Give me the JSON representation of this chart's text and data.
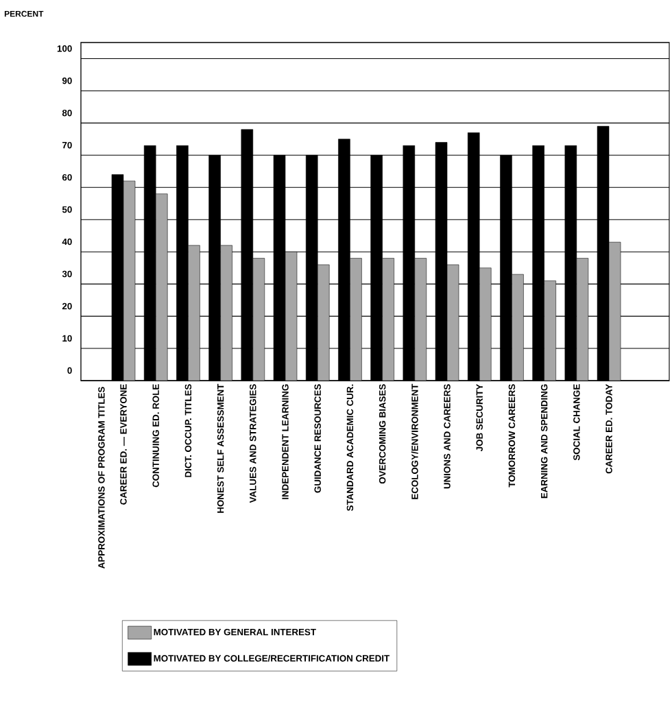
{
  "chart_data": {
    "type": "bar",
    "ylabel": "PERCENT",
    "annotations": [
      "APPROXIMATIONS OF PROGRAM TITLES"
    ],
    "categories": [
      "CAREER ED. — EVERYONE",
      "CONTINUING ED. ROLE",
      "DICT. OCCUP. TITLES",
      "HONEST SELF ASSESSMENT",
      "VALUES AND STRATEGIES",
      "INDEPENDENT LEARNING",
      "GUIDANCE RESOURCES",
      "STANDARD ACADEMIC CUR.",
      "OVERCOMING BIASES",
      "ECOLOGY/ENVIRONMENT",
      "UNIONS AND CAREERS",
      "JOB SECURITY",
      "TOMORROW CAREERS",
      "EARNING AND SPENDING",
      "SOCIAL CHANGE",
      "CAREER ED. TODAY"
    ],
    "series": [
      {
        "name": "MOTIVATED BY COLLEGE/RECERTIFICATION CREDIT",
        "color": "#000000",
        "values": [
          64,
          73,
          73,
          70,
          78,
          70,
          70,
          75,
          70,
          73,
          74,
          77,
          70,
          73,
          73,
          79
        ]
      },
      {
        "name": "MOTIVATED BY GENERAL INTEREST",
        "color": "#a6a6a6",
        "values": [
          62,
          58,
          42,
          42,
          38,
          40,
          36,
          38,
          38,
          38,
          36,
          35,
          33,
          31,
          38,
          43
        ]
      }
    ],
    "ylim": [
      0,
      105
    ],
    "yticks": [
      0,
      10,
      20,
      30,
      40,
      50,
      60,
      70,
      80,
      90,
      100
    ],
    "grid": "y",
    "legend": "bottom left"
  }
}
